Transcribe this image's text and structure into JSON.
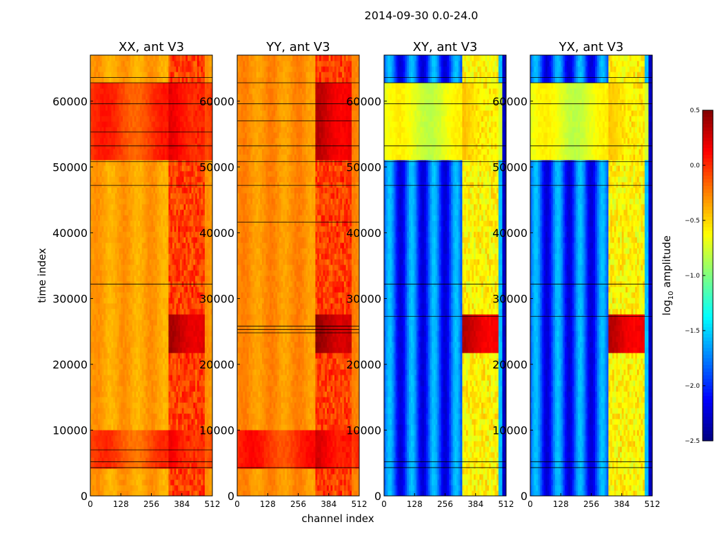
{
  "chart_data": {
    "type": "heatmap",
    "title": "2014-09-30 0.0-24.0",
    "xlabel": "channel index",
    "ylabel": "time index",
    "xlim": [
      0,
      512
    ],
    "ylim": [
      0,
      67000
    ],
    "x_ticks": [
      0,
      128,
      256,
      384,
      512
    ],
    "y_ticks": [
      0,
      10000,
      20000,
      30000,
      40000,
      50000,
      60000
    ],
    "panels": [
      {
        "name": "XX",
        "title": "XX, ant V3",
        "base_level": -0.35,
        "rfi_channel_range": [
          330,
          480
        ],
        "rfi_level": -0.05,
        "high_rows": [
          {
            "t0": 4300,
            "t1": 9900,
            "level": -0.1
          },
          {
            "t0": 50800,
            "t1": 62800,
            "level": -0.05
          },
          {
            "t0": 22000,
            "t1": 28000,
            "level": 0.15
          }
        ],
        "horizontal_lines": [
          4300,
          5200,
          7000,
          32200,
          47200,
          50800,
          53200,
          55300,
          59600,
          62800,
          63600
        ]
      },
      {
        "name": "YY",
        "title": "YY, ant V3",
        "base_level": -0.3,
        "rfi_channel_range": [
          330,
          480
        ],
        "rfi_level": -0.05,
        "high_rows": [
          {
            "t0": 4300,
            "t1": 9900,
            "level": 0.0
          },
          {
            "t0": 50800,
            "t1": 62800,
            "level": 0.1
          },
          {
            "t0": 22000,
            "t1": 28000,
            "level": 0.2
          }
        ],
        "horizontal_lines": [
          4300,
          24800,
          25300,
          25800,
          41600,
          47200,
          50800,
          53200,
          57000,
          59600,
          62800
        ]
      },
      {
        "name": "XY",
        "title": "XY, ant V3",
        "base_level": -1.9,
        "rfi_channel_range": [
          330,
          480
        ],
        "rfi_level": -0.6,
        "high_rows": [
          {
            "t0": 50800,
            "t1": 62800,
            "level": -0.7
          },
          {
            "t0": 22000,
            "t1": 28000,
            "level": 0.1
          }
        ],
        "horizontal_lines": [
          4300,
          5200,
          27300,
          32200,
          47200,
          50800,
          53200,
          59600,
          62800,
          63600
        ]
      },
      {
        "name": "YX",
        "title": "YX, ant V3",
        "base_level": -1.9,
        "rfi_channel_range": [
          330,
          480
        ],
        "rfi_level": -0.6,
        "high_rows": [
          {
            "t0": 50800,
            "t1": 62800,
            "level": -0.7
          },
          {
            "t0": 22000,
            "t1": 28000,
            "level": 0.1
          }
        ],
        "horizontal_lines": [
          4300,
          5200,
          27300,
          32200,
          47200,
          50800,
          53200,
          59600,
          62800,
          63600
        ]
      }
    ],
    "colorbar": {
      "label_prefix": "log",
      "label_subscript": "10",
      "label_suffix": " amplitude",
      "range": [
        -2.5,
        0.5
      ],
      "ticks": [
        0.5,
        0.0,
        -0.5,
        -1.0,
        -1.5,
        -2.0,
        -2.5
      ],
      "tick_labels": [
        "0.5",
        "0.0",
        "−0.5",
        "−1.0",
        "−1.5",
        "−2.0",
        "−2.5"
      ],
      "colormap": "jet"
    }
  }
}
